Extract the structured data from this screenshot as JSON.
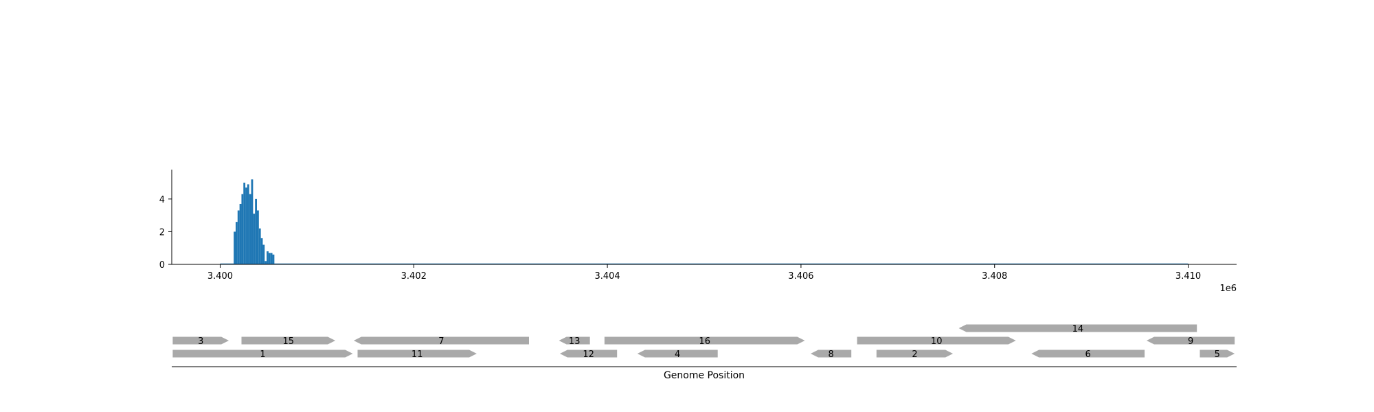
{
  "chart_data": {
    "type": "bar",
    "xlabel": "Genome Position",
    "x_offset_label": "1e6",
    "colors": {
      "bar": "#1f77b4",
      "gene": "#a9a9a9",
      "axis": "#000000"
    },
    "coverage": {
      "xlim": [
        3399500,
        3410500
      ],
      "ylim": [
        0,
        5.8
      ],
      "yticks": [
        0,
        2,
        4
      ],
      "ytick_labels": [
        "0",
        "2",
        "4"
      ],
      "xticks": [
        3400000,
        3402000,
        3404000,
        3406000,
        3408000,
        3410000
      ],
      "xtick_labels": [
        "3.400",
        "3.402",
        "3.404",
        "3.406",
        "3.408",
        "3.410"
      ],
      "bin_width": 20,
      "bins": [
        {
          "x": 3400150,
          "y": 2.0
        },
        {
          "x": 3400170,
          "y": 2.6
        },
        {
          "x": 3400190,
          "y": 3.3
        },
        {
          "x": 3400210,
          "y": 3.7
        },
        {
          "x": 3400230,
          "y": 4.3
        },
        {
          "x": 3400250,
          "y": 5.0
        },
        {
          "x": 3400270,
          "y": 4.7
        },
        {
          "x": 3400290,
          "y": 4.9
        },
        {
          "x": 3400310,
          "y": 4.3
        },
        {
          "x": 3400330,
          "y": 5.2
        },
        {
          "x": 3400350,
          "y": 3.1
        },
        {
          "x": 3400370,
          "y": 4.0
        },
        {
          "x": 3400390,
          "y": 3.3
        },
        {
          "x": 3400410,
          "y": 2.2
        },
        {
          "x": 3400430,
          "y": 1.6
        },
        {
          "x": 3400450,
          "y": 1.2
        },
        {
          "x": 3400470,
          "y": 0.2
        },
        {
          "x": 3400490,
          "y": 0.8
        },
        {
          "x": 3400510,
          "y": 0.7
        },
        {
          "x": 3400530,
          "y": 0.7
        },
        {
          "x": 3400550,
          "y": 0.6
        }
      ]
    },
    "genes": [
      {
        "label": "3",
        "start": 3399510,
        "end": 3400090,
        "strand": "+",
        "row": 1
      },
      {
        "label": "15",
        "start": 3400220,
        "end": 3401190,
        "strand": "+",
        "row": 1
      },
      {
        "label": "7",
        "start": 3401380,
        "end": 3403190,
        "strand": "-",
        "row": 1
      },
      {
        "label": "13",
        "start": 3403500,
        "end": 3403820,
        "strand": "-",
        "row": 1
      },
      {
        "label": "16",
        "start": 3403970,
        "end": 3406040,
        "strand": "+",
        "row": 1
      },
      {
        "label": "10",
        "start": 3406580,
        "end": 3408220,
        "strand": "+",
        "row": 1
      },
      {
        "label": "14",
        "start": 3407630,
        "end": 3410090,
        "strand": "-",
        "row": 2
      },
      {
        "label": "9",
        "start": 3409570,
        "end": 3410480,
        "strand": "-",
        "row": 1
      },
      {
        "label": "1",
        "start": 3399510,
        "end": 3401370,
        "strand": "+",
        "row": 0
      },
      {
        "label": "11",
        "start": 3401420,
        "end": 3402650,
        "strand": "+",
        "row": 0
      },
      {
        "label": "12",
        "start": 3403510,
        "end": 3404100,
        "strand": "-",
        "row": 0
      },
      {
        "label": "4",
        "start": 3404310,
        "end": 3405140,
        "strand": "-",
        "row": 0
      },
      {
        "label": "8",
        "start": 3406100,
        "end": 3406520,
        "strand": "-",
        "row": 0
      },
      {
        "label": "2",
        "start": 3406780,
        "end": 3407570,
        "strand": "+",
        "row": 0
      },
      {
        "label": "6",
        "start": 3408380,
        "end": 3409550,
        "strand": "-",
        "row": 0
      },
      {
        "label": "5",
        "start": 3410120,
        "end": 3410480,
        "strand": "+",
        "row": 0
      }
    ]
  }
}
